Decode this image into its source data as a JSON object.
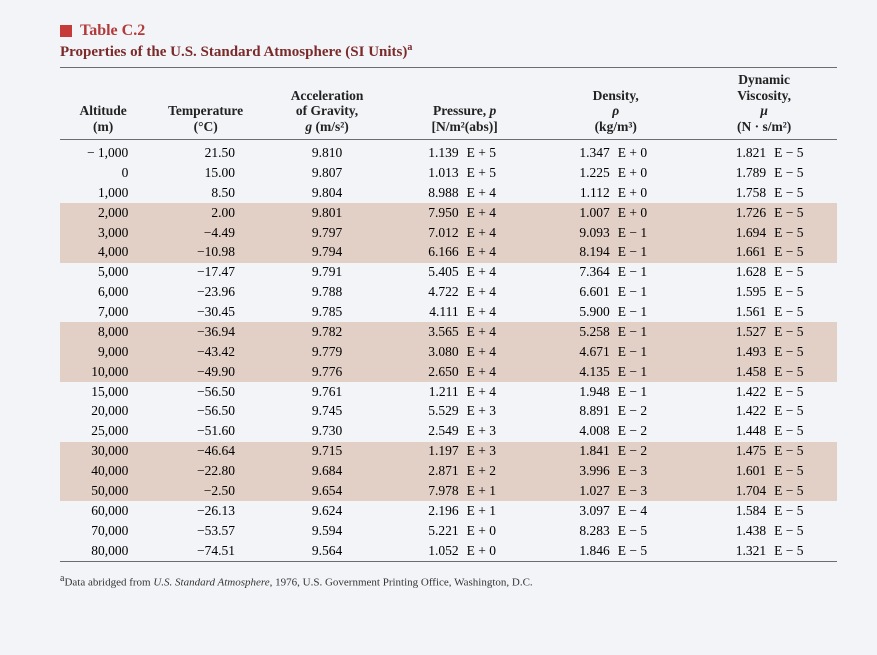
{
  "title": {
    "accent_color": "#c63a3a",
    "label_color": "#b23a3a",
    "caption_color": "#7b2a2a",
    "number": "Table C.2",
    "caption": "Properties of the U.S. Standard Atmosphere (SI Units)",
    "caption_sup": "a"
  },
  "background_color": "#f2f4f7",
  "band_color": "#e2d0c7",
  "rule_color": "#6c6c6c",
  "font_family": "Times New Roman",
  "columns": {
    "altitude": {
      "l1": "Altitude",
      "l2": "(m)"
    },
    "temperature": {
      "l1": "Temperature",
      "l2": "(°C)"
    },
    "gravity": {
      "l0": "Acceleration",
      "l1": "of Gravity,",
      "l2_html": "<i>g</i> (m/s²)"
    },
    "pressure": {
      "l1_html": "Pressure, <i>p</i>",
      "l2_html": "[N/m²(abs)]"
    },
    "density": {
      "l0": "Density,",
      "l1_html": "<i>ρ</i>",
      "l2_html": "(kg/m³)"
    },
    "viscosity": {
      "lA": "Dynamic",
      "l0": "Viscosity,",
      "l1_html": "<i>μ</i>",
      "l2_html": "(N · s/m²)"
    }
  },
  "rows": [
    {
      "alt": "− 1,000",
      "temp": "21.50",
      "g": "9.810",
      "p_v": "1.139",
      "p_e": "E + 5",
      "d_v": "1.347",
      "d_e": "E + 0",
      "v_v": "1.821",
      "v_e": "E − 5"
    },
    {
      "alt": "0",
      "temp": "15.00",
      "g": "9.807",
      "p_v": "1.013",
      "p_e": "E + 5",
      "d_v": "1.225",
      "d_e": "E + 0",
      "v_v": "1.789",
      "v_e": "E − 5"
    },
    {
      "alt": "1,000",
      "temp": "8.50",
      "g": "9.804",
      "p_v": "8.988",
      "p_e": "E + 4",
      "d_v": "1.112",
      "d_e": "E + 0",
      "v_v": "1.758",
      "v_e": "E − 5"
    },
    {
      "alt": "2,000",
      "temp": "2.00",
      "g": "9.801",
      "p_v": "7.950",
      "p_e": "E + 4",
      "d_v": "1.007",
      "d_e": "E + 0",
      "v_v": "1.726",
      "v_e": "E − 5",
      "band": true
    },
    {
      "alt": "3,000",
      "temp": "−4.49",
      "g": "9.797",
      "p_v": "7.012",
      "p_e": "E + 4",
      "d_v": "9.093",
      "d_e": "E − 1",
      "v_v": "1.694",
      "v_e": "E − 5",
      "band": true
    },
    {
      "alt": "4,000",
      "temp": "−10.98",
      "g": "9.794",
      "p_v": "6.166",
      "p_e": "E + 4",
      "d_v": "8.194",
      "d_e": "E − 1",
      "v_v": "1.661",
      "v_e": "E − 5",
      "band": true
    },
    {
      "alt": "5,000",
      "temp": "−17.47",
      "g": "9.791",
      "p_v": "5.405",
      "p_e": "E + 4",
      "d_v": "7.364",
      "d_e": "E − 1",
      "v_v": "1.628",
      "v_e": "E − 5"
    },
    {
      "alt": "6,000",
      "temp": "−23.96",
      "g": "9.788",
      "p_v": "4.722",
      "p_e": "E + 4",
      "d_v": "6.601",
      "d_e": "E − 1",
      "v_v": "1.595",
      "v_e": "E − 5"
    },
    {
      "alt": "7,000",
      "temp": "−30.45",
      "g": "9.785",
      "p_v": "4.111",
      "p_e": "E + 4",
      "d_v": "5.900",
      "d_e": "E − 1",
      "v_v": "1.561",
      "v_e": "E − 5"
    },
    {
      "alt": "8,000",
      "temp": "−36.94",
      "g": "9.782",
      "p_v": "3.565",
      "p_e": "E + 4",
      "d_v": "5.258",
      "d_e": "E − 1",
      "v_v": "1.527",
      "v_e": "E − 5",
      "band": true
    },
    {
      "alt": "9,000",
      "temp": "−43.42",
      "g": "9.779",
      "p_v": "3.080",
      "p_e": "E + 4",
      "d_v": "4.671",
      "d_e": "E − 1",
      "v_v": "1.493",
      "v_e": "E − 5",
      "band": true
    },
    {
      "alt": "10,000",
      "temp": "−49.90",
      "g": "9.776",
      "p_v": "2.650",
      "p_e": "E + 4",
      "d_v": "4.135",
      "d_e": "E − 1",
      "v_v": "1.458",
      "v_e": "E − 5",
      "band": true
    },
    {
      "alt": "15,000",
      "temp": "−56.50",
      "g": "9.761",
      "p_v": "1.211",
      "p_e": "E + 4",
      "d_v": "1.948",
      "d_e": "E − 1",
      "v_v": "1.422",
      "v_e": "E − 5"
    },
    {
      "alt": "20,000",
      "temp": "−56.50",
      "g": "9.745",
      "p_v": "5.529",
      "p_e": "E + 3",
      "d_v": "8.891",
      "d_e": "E − 2",
      "v_v": "1.422",
      "v_e": "E − 5"
    },
    {
      "alt": "25,000",
      "temp": "−51.60",
      "g": "9.730",
      "p_v": "2.549",
      "p_e": "E + 3",
      "d_v": "4.008",
      "d_e": "E − 2",
      "v_v": "1.448",
      "v_e": "E − 5"
    },
    {
      "alt": "30,000",
      "temp": "−46.64",
      "g": "9.715",
      "p_v": "1.197",
      "p_e": "E + 3",
      "d_v": "1.841",
      "d_e": "E − 2",
      "v_v": "1.475",
      "v_e": "E − 5",
      "band": true
    },
    {
      "alt": "40,000",
      "temp": "−22.80",
      "g": "9.684",
      "p_v": "2.871",
      "p_e": "E + 2",
      "d_v": "3.996",
      "d_e": "E − 3",
      "v_v": "1.601",
      "v_e": "E − 5",
      "band": true
    },
    {
      "alt": "50,000",
      "temp": "−2.50",
      "g": "9.654",
      "p_v": "7.978",
      "p_e": "E + 1",
      "d_v": "1.027",
      "d_e": "E − 3",
      "v_v": "1.704",
      "v_e": "E − 5",
      "band": true
    },
    {
      "alt": "60,000",
      "temp": "−26.13",
      "g": "9.624",
      "p_v": "2.196",
      "p_e": "E + 1",
      "d_v": "3.097",
      "d_e": "E − 4",
      "v_v": "1.584",
      "v_e": "E − 5"
    },
    {
      "alt": "70,000",
      "temp": "−53.57",
      "g": "9.594",
      "p_v": "5.221",
      "p_e": "E + 0",
      "d_v": "8.283",
      "d_e": "E − 5",
      "v_v": "1.438",
      "v_e": "E − 5"
    },
    {
      "alt": "80,000",
      "temp": "−74.51",
      "g": "9.564",
      "p_v": "1.052",
      "p_e": "E + 0",
      "d_v": "1.846",
      "d_e": "E − 5",
      "v_v": "1.321",
      "v_e": "E − 5"
    }
  ],
  "footnote": {
    "sup": "a",
    "prefix": "Data abridged from ",
    "source": "U.S. Standard Atmosphere",
    "suffix": ", 1976, U.S. Government Printing Office, Washington, D.C."
  }
}
